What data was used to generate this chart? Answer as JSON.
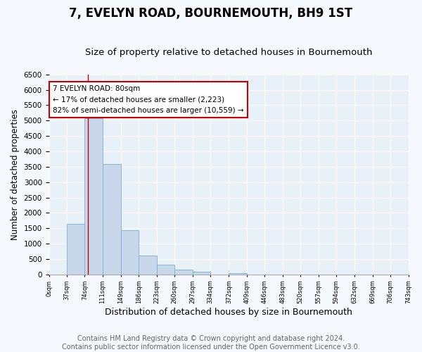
{
  "title": "7, EVELYN ROAD, BOURNEMOUTH, BH9 1ST",
  "subtitle": "Size of property relative to detached houses in Bournemouth",
  "xlabel": "Distribution of detached houses by size in Bournemouth",
  "ylabel": "Number of detached properties",
  "bar_color": "#c8d8ea",
  "bar_edge_color": "#7aafd4",
  "background_color": "#e8f0f8",
  "fig_background_color": "#f5f8fc",
  "grid_color": "#ffffff",
  "bin_edges": [
    0,
    37,
    74,
    111,
    149,
    186,
    223,
    260,
    297,
    334,
    372,
    409,
    446,
    483,
    520,
    557,
    594,
    632,
    669,
    706,
    743
  ],
  "bar_heights": [
    0,
    1650,
    5080,
    3600,
    1430,
    620,
    310,
    150,
    90,
    0,
    50,
    0,
    0,
    0,
    0,
    0,
    0,
    0,
    0,
    0
  ],
  "ylim": [
    0,
    6500
  ],
  "yticks": [
    0,
    500,
    1000,
    1500,
    2000,
    2500,
    3000,
    3500,
    4000,
    4500,
    5000,
    5500,
    6000,
    6500
  ],
  "xtick_labels": [
    "0sqm",
    "37sqm",
    "74sqm",
    "111sqm",
    "149sqm",
    "186sqm",
    "223sqm",
    "260sqm",
    "297sqm",
    "334sqm",
    "372sqm",
    "409sqm",
    "446sqm",
    "483sqm",
    "520sqm",
    "557sqm",
    "594sqm",
    "632sqm",
    "669sqm",
    "706sqm",
    "743sqm"
  ],
  "red_line_x": 80,
  "annotation_title": "7 EVELYN ROAD: 80sqm",
  "annotation_line1": "← 17% of detached houses are smaller (2,223)",
  "annotation_line2": "82% of semi-detached houses are larger (10,559) →",
  "annotation_box_color": "#ffffff",
  "annotation_box_edge": "#cc0000",
  "red_line_color": "#cc0000",
  "footnote1": "Contains HM Land Registry data © Crown copyright and database right 2024.",
  "footnote2": "Contains public sector information licensed under the Open Government Licence v3.0.",
  "title_fontsize": 12,
  "subtitle_fontsize": 9.5,
  "xlabel_fontsize": 9,
  "ylabel_fontsize": 8.5,
  "footnote_fontsize": 7
}
